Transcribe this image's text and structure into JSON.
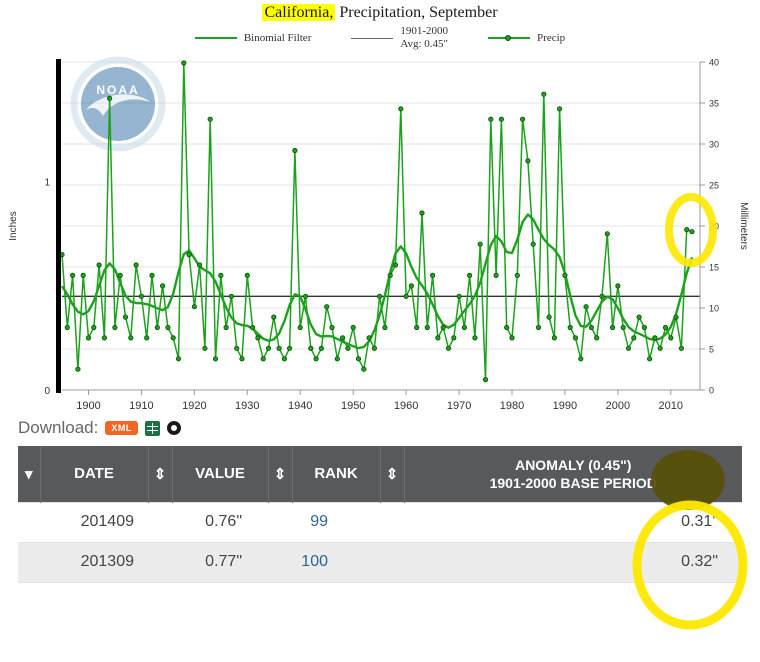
{
  "title": {
    "highlight": "California,",
    "rest": " Precipitation, September"
  },
  "legend": {
    "binomial": "Binomial Filter",
    "avg_line1": "1901-2000",
    "avg_line2": "Avg: 0.45\"",
    "precip": "Precip"
  },
  "watermark": {
    "org": "NOAA"
  },
  "chart_data": {
    "type": "line",
    "title": "California, Precipitation, September",
    "x_start_year": 1895,
    "x_end_year": 2014,
    "xticks": [
      1900,
      1910,
      1920,
      1930,
      1940,
      1950,
      1960,
      1970,
      1980,
      1990,
      2000,
      2010
    ],
    "yaxis_left": {
      "label": "Inches",
      "ticks": [
        0,
        1
      ]
    },
    "yaxis_right": {
      "label": "Millimeters",
      "ticks": [
        0,
        5,
        10,
        15,
        20,
        25,
        30,
        35,
        40
      ],
      "max_mm": 40
    },
    "average_line": {
      "value_inches": 0.45,
      "label": "1901-2000 Avg: 0.45\""
    },
    "grid": "horizontal",
    "legend_position": "top",
    "series": [
      {
        "name": "Precip",
        "style": "line+markers",
        "unit": "inches",
        "values": [
          0.65,
          0.3,
          0.55,
          0.1,
          0.55,
          0.25,
          0.3,
          0.6,
          0.25,
          1.4,
          0.3,
          0.55,
          0.35,
          0.25,
          0.6,
          0.45,
          0.25,
          0.55,
          0.3,
          0.5,
          0.3,
          0.25,
          0.15,
          1.57,
          0.65,
          0.4,
          0.6,
          0.2,
          1.3,
          0.15,
          0.55,
          0.3,
          0.45,
          0.2,
          0.15,
          0.55,
          0.3,
          0.25,
          0.15,
          0.2,
          0.35,
          0.2,
          0.15,
          0.2,
          1.15,
          0.3,
          0.45,
          0.2,
          0.15,
          0.2,
          0.4,
          0.3,
          0.15,
          0.25,
          0.2,
          0.3,
          0.15,
          0.1,
          0.25,
          0.2,
          0.45,
          0.3,
          0.55,
          0.6,
          1.35,
          0.45,
          0.5,
          0.3,
          0.85,
          0.3,
          0.55,
          0.25,
          0.3,
          0.2,
          0.25,
          0.45,
          0.3,
          0.55,
          0.25,
          0.7,
          0.05,
          1.3,
          0.55,
          1.3,
          0.3,
          0.25,
          0.55,
          1.3,
          1.1,
          0.7,
          0.3,
          1.42,
          0.35,
          0.25,
          1.35,
          0.55,
          0.3,
          0.25,
          0.15,
          0.4,
          0.3,
          0.25,
          0.45,
          0.75,
          0.3,
          0.5,
          0.3,
          0.2,
          0.25,
          0.35,
          0.3,
          0.15,
          0.25,
          0.2,
          0.3,
          0.25,
          0.35,
          0.2,
          0.77,
          0.76
        ]
      },
      {
        "name": "Binomial Filter",
        "style": "smoothed-line",
        "derived_from": "Precip"
      }
    ],
    "colors": {
      "precip": "#1ca21c",
      "average": "#333333",
      "gridline": "#e3e3e3"
    }
  },
  "download": {
    "label": "Download:",
    "xml_label": "XML",
    "icons": [
      "xml-badge",
      "excel-icon",
      "globe-icon"
    ]
  },
  "table": {
    "sort_icons": {
      "active": "▾",
      "both": "⇕"
    },
    "headers": {
      "date": "DATE",
      "value": "VALUE",
      "rank": "RANK",
      "anomaly_line1": "ANOMALY (0.45\")",
      "anomaly_line2": "1901-2000 BASE PERIOD"
    },
    "rows": [
      {
        "date": "201409",
        "value": "0.76\"",
        "rank": "99",
        "anomaly": "0.31\""
      },
      {
        "date": "201309",
        "value": "0.77\"",
        "rank": "100",
        "anomaly": "0.32\""
      }
    ]
  },
  "annotations": {
    "marker_color": "#ffe800",
    "marker_dark_color": "#565007"
  }
}
